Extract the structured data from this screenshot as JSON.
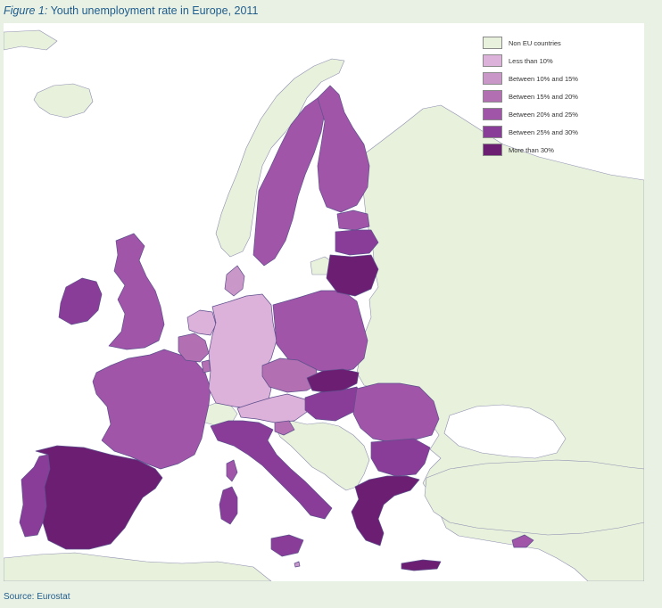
{
  "figure": {
    "label": "Figure 1:",
    "title": "Youth unemployment rate in Europe, 2011"
  },
  "source": "Source: Eurostat",
  "colors": {
    "sea": "#ffffff",
    "non_eu": "#e7f1dc",
    "lt10": "#dcb1da",
    "c10_15": "#c998c9",
    "c15_20": "#b270b2",
    "c20_25": "#a055a8",
    "c25_30": "#8a3d98",
    "gt30": "#6c1f72"
  },
  "legend": [
    {
      "key": "non_eu",
      "label": "Non EU countries",
      "color": "#e7f1dc"
    },
    {
      "key": "lt10",
      "label": "Less than 10%",
      "color": "#dcb1da"
    },
    {
      "key": "c10_15",
      "label": "Between 10% and 15%",
      "color": "#c998c9"
    },
    {
      "key": "c15_20",
      "label": "Between 15% and 20%",
      "color": "#b270b2"
    },
    {
      "key": "c20_25",
      "label": "Between 20% and 25%",
      "color": "#a055a8"
    },
    {
      "key": "c25_30",
      "label": "Between 25% and 30%",
      "color": "#8a3d98"
    },
    {
      "key": "gt30",
      "label": "More than 30%",
      "color": "#6c1f72"
    }
  ],
  "regions": [
    {
      "name": "region-spain",
      "category": "gt30"
    },
    {
      "name": "region-greece",
      "category": "gt30"
    },
    {
      "name": "region-lithuania",
      "category": "gt30"
    },
    {
      "name": "region-slovakia",
      "category": "gt30"
    },
    {
      "name": "region-portugal",
      "category": "c25_30"
    },
    {
      "name": "region-bulgaria",
      "category": "c25_30"
    },
    {
      "name": "region-italy",
      "category": "c25_30"
    },
    {
      "name": "region-ireland",
      "category": "c25_30"
    },
    {
      "name": "region-latvia",
      "category": "c25_30"
    },
    {
      "name": "region-hungary",
      "category": "c25_30"
    },
    {
      "name": "region-poland",
      "category": "c20_25"
    },
    {
      "name": "region-france",
      "category": "c20_25"
    },
    {
      "name": "region-uk",
      "category": "c20_25"
    },
    {
      "name": "region-sweden",
      "category": "c20_25"
    },
    {
      "name": "region-finland",
      "category": "c20_25"
    },
    {
      "name": "region-romania",
      "category": "c20_25"
    },
    {
      "name": "region-belgium",
      "category": "c15_20"
    },
    {
      "name": "region-czech",
      "category": "c15_20"
    },
    {
      "name": "region-estonia",
      "category": "c20_25"
    },
    {
      "name": "region-slovenia",
      "category": "c15_20"
    },
    {
      "name": "region-cyprus",
      "category": "c20_25"
    },
    {
      "name": "region-denmark",
      "category": "c10_15"
    },
    {
      "name": "region-luxembourg",
      "category": "c15_20"
    },
    {
      "name": "region-malta",
      "category": "c10_15"
    },
    {
      "name": "region-germany",
      "category": "lt10"
    },
    {
      "name": "region-netherlands",
      "category": "lt10"
    },
    {
      "name": "region-austria",
      "category": "lt10"
    }
  ]
}
